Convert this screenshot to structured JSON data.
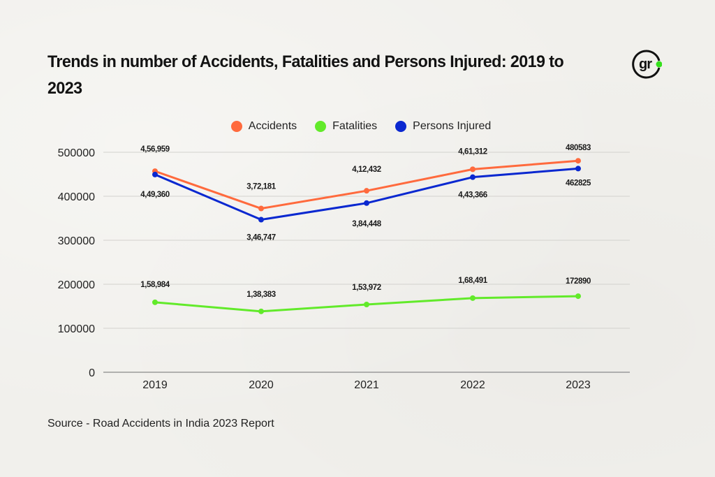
{
  "header": {
    "title": "Trends in number of Accidents, Fatalities and Persons Injured: 2019 to 2023",
    "logo_text": "gr",
    "logo_accent": "#35e01c"
  },
  "legend": [
    {
      "label": "Accidents",
      "color": "#ff6a3d"
    },
    {
      "label": "Fatalities",
      "color": "#62ea2a"
    },
    {
      "label": "Persons Injured",
      "color": "#0a28d0"
    }
  ],
  "footer": {
    "source": "Source - Road Accidents in India 2023 Report"
  },
  "chart_data": {
    "type": "line",
    "title": "Trends in number of Accidents, Fatalities and Persons Injured: 2019 to 2023",
    "xlabel": "",
    "ylabel": "",
    "categories": [
      "2019",
      "2020",
      "2021",
      "2022",
      "2023"
    ],
    "ylim": [
      0,
      500000
    ],
    "yticks": [
      "0",
      "100000",
      "200000",
      "300000",
      "400000",
      "500000"
    ],
    "grid": true,
    "legend_position": "top-center",
    "series": [
      {
        "name": "Accidents",
        "color": "#ff6a3d",
        "values": [
          456959,
          372181,
          412432,
          461312,
          480583
        ],
        "labels": [
          "4,56,959",
          "3,72,181",
          "4,12,432",
          "4,61,312",
          "480583"
        ],
        "label_position": "above"
      },
      {
        "name": "Fatalities",
        "color": "#62ea2a",
        "values": [
          158984,
          138383,
          153972,
          168491,
          172890
        ],
        "labels": [
          "1,58,984",
          "1,38,383",
          "1,53,972",
          "1,68,491",
          "172890"
        ],
        "label_position": "above"
      },
      {
        "name": "Persons Injured",
        "color": "#0a28d0",
        "values": [
          449360,
          346747,
          384448,
          443366,
          462825
        ],
        "labels": [
          "4,49,360",
          "3,46,747",
          "3,84,448",
          "4,43,366",
          "462825"
        ],
        "label_position": "below"
      }
    ]
  }
}
